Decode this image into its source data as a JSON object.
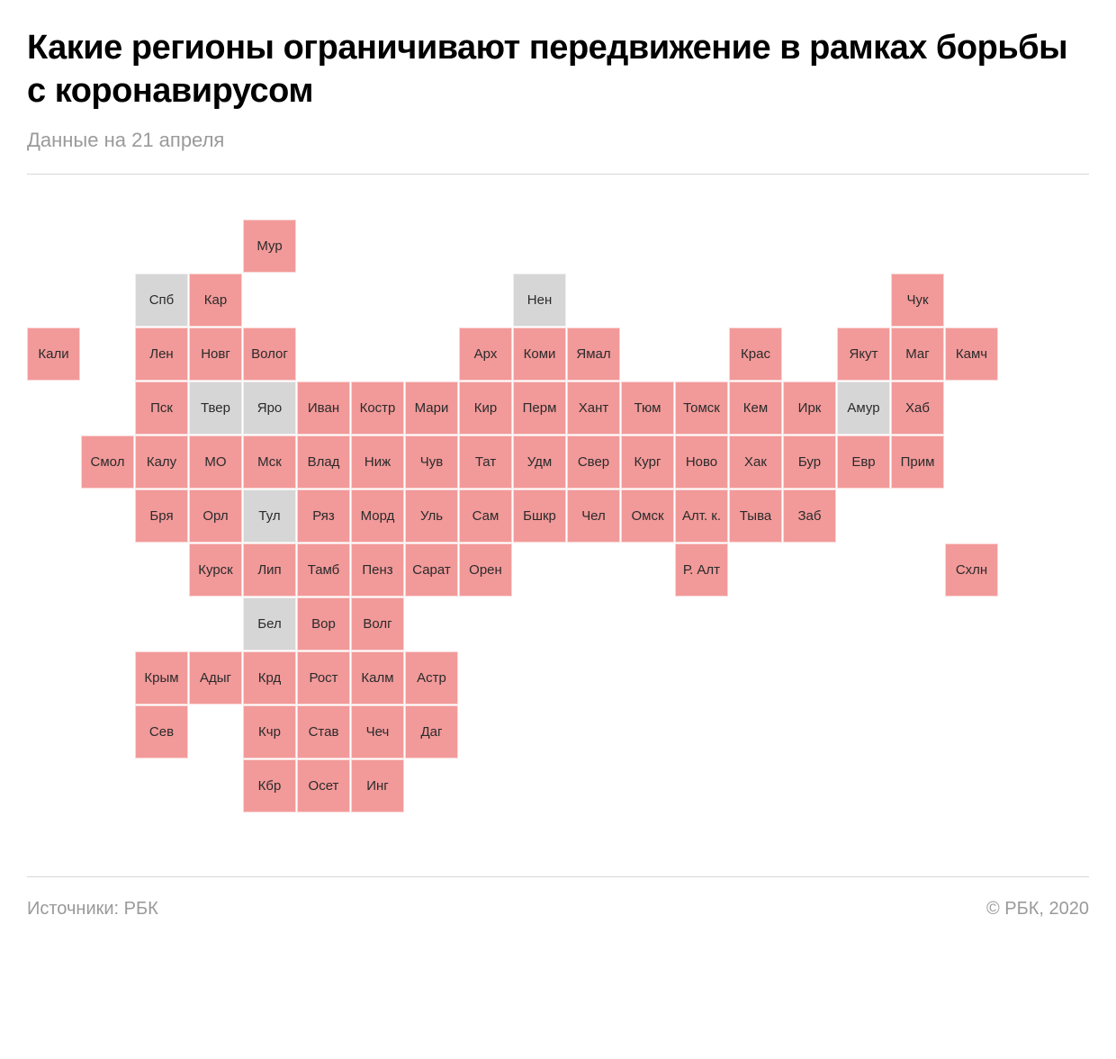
{
  "title": "Какие регионы ограничивают передвижение в рамках борьбы с коронавирусом",
  "subtitle": "Данные на 21 апреля",
  "footer_left": "Источники: РБК",
  "footer_right": "© РБК, 2020",
  "chart": {
    "type": "tile-grid-map",
    "cell_size": 59,
    "cell_gap": 1,
    "colors": {
      "restricted": "#f29999",
      "not_restricted": "#d6d6d6",
      "text": "#2b2b2b",
      "background": "#ffffff"
    },
    "font_size_cell": 15,
    "regions": [
      {
        "label": "Мур",
        "col": 4,
        "row": 0,
        "status": "restricted"
      },
      {
        "label": "Спб",
        "col": 2,
        "row": 1,
        "status": "not_restricted"
      },
      {
        "label": "Кар",
        "col": 3,
        "row": 1,
        "status": "restricted"
      },
      {
        "label": "Нен",
        "col": 9,
        "row": 1,
        "status": "not_restricted"
      },
      {
        "label": "Чук",
        "col": 16,
        "row": 1,
        "status": "restricted"
      },
      {
        "label": "Кали",
        "col": 0,
        "row": 2,
        "status": "restricted"
      },
      {
        "label": "Лен",
        "col": 2,
        "row": 2,
        "status": "restricted"
      },
      {
        "label": "Новг",
        "col": 3,
        "row": 2,
        "status": "restricted"
      },
      {
        "label": "Волог",
        "col": 4,
        "row": 2,
        "status": "restricted"
      },
      {
        "label": "Арх",
        "col": 8,
        "row": 2,
        "status": "restricted"
      },
      {
        "label": "Коми",
        "col": 9,
        "row": 2,
        "status": "restricted"
      },
      {
        "label": "Ямал",
        "col": 10,
        "row": 2,
        "status": "restricted"
      },
      {
        "label": "Крас",
        "col": 13,
        "row": 2,
        "status": "restricted"
      },
      {
        "label": "Якут",
        "col": 15,
        "row": 2,
        "status": "restricted"
      },
      {
        "label": "Маг",
        "col": 16,
        "row": 2,
        "status": "restricted"
      },
      {
        "label": "Камч",
        "col": 17,
        "row": 2,
        "status": "restricted"
      },
      {
        "label": "Пск",
        "col": 2,
        "row": 3,
        "status": "restricted"
      },
      {
        "label": "Твер",
        "col": 3,
        "row": 3,
        "status": "not_restricted"
      },
      {
        "label": "Яро",
        "col": 4,
        "row": 3,
        "status": "not_restricted"
      },
      {
        "label": "Иван",
        "col": 5,
        "row": 3,
        "status": "restricted"
      },
      {
        "label": "Костр",
        "col": 6,
        "row": 3,
        "status": "restricted"
      },
      {
        "label": "Мари",
        "col": 7,
        "row": 3,
        "status": "restricted"
      },
      {
        "label": "Кир",
        "col": 8,
        "row": 3,
        "status": "restricted"
      },
      {
        "label": "Перм",
        "col": 9,
        "row": 3,
        "status": "restricted"
      },
      {
        "label": "Хант",
        "col": 10,
        "row": 3,
        "status": "restricted"
      },
      {
        "label": "Тюм",
        "col": 11,
        "row": 3,
        "status": "restricted"
      },
      {
        "label": "Томск",
        "col": 12,
        "row": 3,
        "status": "restricted"
      },
      {
        "label": "Кем",
        "col": 13,
        "row": 3,
        "status": "restricted"
      },
      {
        "label": "Ирк",
        "col": 14,
        "row": 3,
        "status": "restricted"
      },
      {
        "label": "Амур",
        "col": 15,
        "row": 3,
        "status": "not_restricted"
      },
      {
        "label": "Хаб",
        "col": 16,
        "row": 3,
        "status": "restricted"
      },
      {
        "label": "Смол",
        "col": 1,
        "row": 4,
        "status": "restricted"
      },
      {
        "label": "Калу",
        "col": 2,
        "row": 4,
        "status": "restricted"
      },
      {
        "label": "МО",
        "col": 3,
        "row": 4,
        "status": "restricted"
      },
      {
        "label": "Мск",
        "col": 4,
        "row": 4,
        "status": "restricted"
      },
      {
        "label": "Влад",
        "col": 5,
        "row": 4,
        "status": "restricted"
      },
      {
        "label": "Ниж",
        "col": 6,
        "row": 4,
        "status": "restricted"
      },
      {
        "label": "Чув",
        "col": 7,
        "row": 4,
        "status": "restricted"
      },
      {
        "label": "Тат",
        "col": 8,
        "row": 4,
        "status": "restricted"
      },
      {
        "label": "Удм",
        "col": 9,
        "row": 4,
        "status": "restricted"
      },
      {
        "label": "Свер",
        "col": 10,
        "row": 4,
        "status": "restricted"
      },
      {
        "label": "Кург",
        "col": 11,
        "row": 4,
        "status": "restricted"
      },
      {
        "label": "Ново",
        "col": 12,
        "row": 4,
        "status": "restricted"
      },
      {
        "label": "Хак",
        "col": 13,
        "row": 4,
        "status": "restricted"
      },
      {
        "label": "Бур",
        "col": 14,
        "row": 4,
        "status": "restricted"
      },
      {
        "label": "Евр",
        "col": 15,
        "row": 4,
        "status": "restricted"
      },
      {
        "label": "Прим",
        "col": 16,
        "row": 4,
        "status": "restricted"
      },
      {
        "label": "Бря",
        "col": 2,
        "row": 5,
        "status": "restricted"
      },
      {
        "label": "Орл",
        "col": 3,
        "row": 5,
        "status": "restricted"
      },
      {
        "label": "Тул",
        "col": 4,
        "row": 5,
        "status": "not_restricted"
      },
      {
        "label": "Ряз",
        "col": 5,
        "row": 5,
        "status": "restricted"
      },
      {
        "label": "Морд",
        "col": 6,
        "row": 5,
        "status": "restricted"
      },
      {
        "label": "Уль",
        "col": 7,
        "row": 5,
        "status": "restricted"
      },
      {
        "label": "Сам",
        "col": 8,
        "row": 5,
        "status": "restricted"
      },
      {
        "label": "Бшкр",
        "col": 9,
        "row": 5,
        "status": "restricted"
      },
      {
        "label": "Чел",
        "col": 10,
        "row": 5,
        "status": "restricted"
      },
      {
        "label": "Омск",
        "col": 11,
        "row": 5,
        "status": "restricted"
      },
      {
        "label": "Алт. к.",
        "col": 12,
        "row": 5,
        "status": "restricted"
      },
      {
        "label": "Тыва",
        "col": 13,
        "row": 5,
        "status": "restricted"
      },
      {
        "label": "Заб",
        "col": 14,
        "row": 5,
        "status": "restricted"
      },
      {
        "label": "Курск",
        "col": 3,
        "row": 6,
        "status": "restricted"
      },
      {
        "label": "Лип",
        "col": 4,
        "row": 6,
        "status": "restricted"
      },
      {
        "label": "Тамб",
        "col": 5,
        "row": 6,
        "status": "restricted"
      },
      {
        "label": "Пенз",
        "col": 6,
        "row": 6,
        "status": "restricted"
      },
      {
        "label": "Сарат",
        "col": 7,
        "row": 6,
        "status": "restricted"
      },
      {
        "label": "Орен",
        "col": 8,
        "row": 6,
        "status": "restricted"
      },
      {
        "label": "Р. Алт",
        "col": 12,
        "row": 6,
        "status": "restricted"
      },
      {
        "label": "Схлн",
        "col": 17,
        "row": 6,
        "status": "restricted"
      },
      {
        "label": "Бел",
        "col": 4,
        "row": 7,
        "status": "not_restricted"
      },
      {
        "label": "Вор",
        "col": 5,
        "row": 7,
        "status": "restricted"
      },
      {
        "label": "Волг",
        "col": 6,
        "row": 7,
        "status": "restricted"
      },
      {
        "label": "Крым",
        "col": 2,
        "row": 8,
        "status": "restricted"
      },
      {
        "label": "Адыг",
        "col": 3,
        "row": 8,
        "status": "restricted"
      },
      {
        "label": "Крд",
        "col": 4,
        "row": 8,
        "status": "restricted"
      },
      {
        "label": "Рост",
        "col": 5,
        "row": 8,
        "status": "restricted"
      },
      {
        "label": "Калм",
        "col": 6,
        "row": 8,
        "status": "restricted"
      },
      {
        "label": "Астр",
        "col": 7,
        "row": 8,
        "status": "restricted"
      },
      {
        "label": "Сев",
        "col": 2,
        "row": 9,
        "status": "restricted"
      },
      {
        "label": "Кчр",
        "col": 4,
        "row": 9,
        "status": "restricted"
      },
      {
        "label": "Став",
        "col": 5,
        "row": 9,
        "status": "restricted"
      },
      {
        "label": "Чеч",
        "col": 6,
        "row": 9,
        "status": "restricted"
      },
      {
        "label": "Даг",
        "col": 7,
        "row": 9,
        "status": "restricted"
      },
      {
        "label": "Кбр",
        "col": 4,
        "row": 10,
        "status": "restricted"
      },
      {
        "label": "Осет",
        "col": 5,
        "row": 10,
        "status": "restricted"
      },
      {
        "label": "Инг",
        "col": 6,
        "row": 10,
        "status": "restricted"
      }
    ]
  }
}
